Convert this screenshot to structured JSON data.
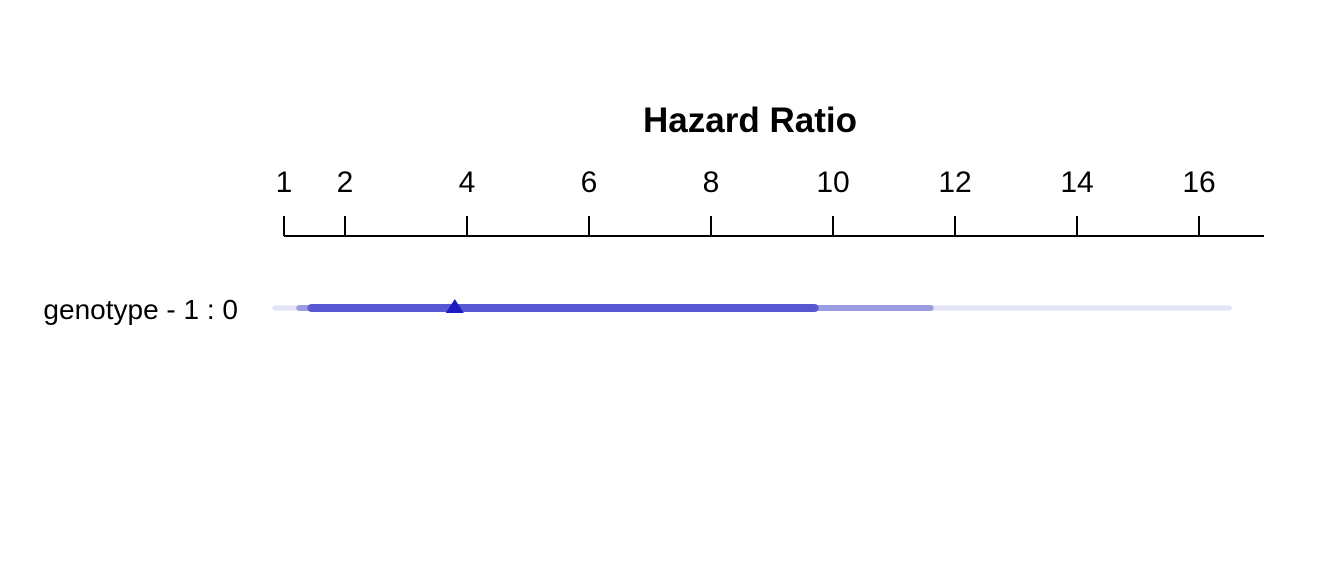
{
  "chart_data": {
    "type": "interval",
    "title": "Hazard Ratio",
    "xlabel": "",
    "ylabel": "",
    "xlim": [
      1,
      17
    ],
    "ticks": [
      1,
      2,
      4,
      6,
      8,
      10,
      12,
      14,
      16
    ],
    "tick_labels": [
      "1",
      "2",
      "4",
      "6",
      "8",
      "10",
      "12",
      "14",
      "16"
    ],
    "rows": [
      {
        "label": "genotype - 1 : 0",
        "estimate": 3.8,
        "intervals": [
          {
            "level": "outer",
            "low": 0.85,
            "high": 16.5,
            "color": "#e3e3f7"
          },
          {
            "level": "middle",
            "low": 1.25,
            "high": 11.6,
            "color": "#9c9ce3"
          },
          {
            "level": "inner",
            "low": 1.45,
            "high": 9.7,
            "color": "#5858d2"
          }
        ],
        "marker": "triangle",
        "marker_color": "#1c1cc2"
      }
    ],
    "grid": false,
    "legend": "none"
  }
}
